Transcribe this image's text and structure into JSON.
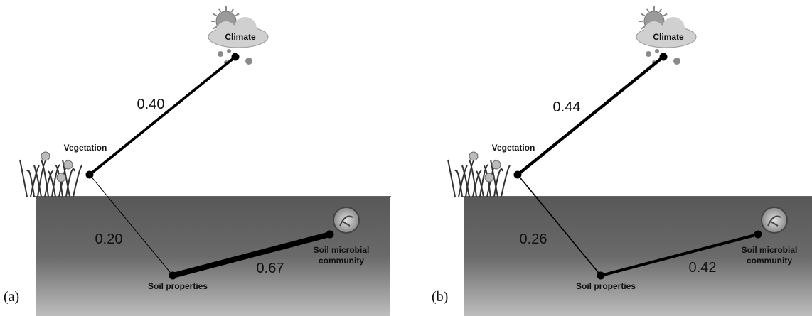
{
  "panels": [
    {
      "label": "(a)",
      "nodes": [
        {
          "label": [
            "Climate"
          ]
        },
        {
          "label": [
            "Vegetation"
          ]
        },
        {
          "label": [
            "Soil properties"
          ]
        },
        {
          "label": [
            "Soil microbial",
            "community"
          ]
        }
      ],
      "edges": [
        {
          "value": 0.4,
          "label": "0.40"
        },
        {
          "value": 0.2,
          "label": "0.20"
        },
        {
          "value": 0.67,
          "label": "0.67"
        }
      ]
    },
    {
      "label": "(b)",
      "nodes": [
        {
          "label": [
            "Climate"
          ]
        },
        {
          "label": [
            "Vegetation"
          ]
        },
        {
          "label": [
            "Soil properties"
          ]
        },
        {
          "label": [
            "Soil microbial",
            "community"
          ]
        }
      ],
      "edges": [
        {
          "value": 0.44,
          "label": "0.44"
        },
        {
          "value": 0.26,
          "label": "0.26"
        },
        {
          "value": 0.42,
          "label": "0.42"
        }
      ]
    }
  ]
}
